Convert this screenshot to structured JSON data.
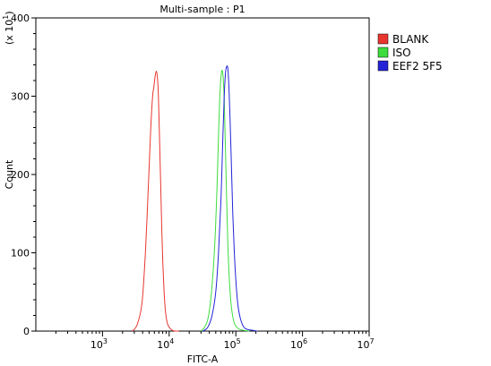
{
  "chart_data": {
    "type": "line",
    "title": "Multi-sample : P1",
    "xlabel": "FITC-A",
    "ylabel": "Count",
    "y_multiplier_label": "(x 10",
    "y_multiplier_exp": "1",
    "x_scale": "log",
    "xlim": [
      100,
      10000000
    ],
    "ylim": [
      0,
      400
    ],
    "grid": false,
    "legend_position": "right",
    "y_ticks": [
      0,
      100,
      200,
      300,
      400
    ],
    "x_ticks": [
      {
        "value": 1000,
        "base": "10",
        "exp": "3"
      },
      {
        "value": 10000,
        "base": "10",
        "exp": "4"
      },
      {
        "value": 100000,
        "base": "10",
        "exp": "5"
      },
      {
        "value": 1000000,
        "base": "10",
        "exp": "6"
      },
      {
        "value": 10000000,
        "base": "10",
        "exp": "7"
      }
    ],
    "series": [
      {
        "name": "BLANK",
        "color": "#e8362f",
        "x": [
          2800,
          3300,
          3900,
          4400,
          4900,
          5300,
          5650,
          5900,
          6150,
          6400,
          6650,
          6900,
          7150,
          7450,
          7750,
          8050,
          8400,
          8800,
          9400,
          10200,
          11200,
          12500,
          14000
        ],
        "y": [
          0,
          8,
          35,
          100,
          190,
          260,
          300,
          312,
          325,
          332,
          325,
          300,
          250,
          190,
          130,
          85,
          50,
          25,
          10,
          4,
          1,
          0,
          0
        ]
      },
      {
        "name": "ISO",
        "color": "#3ddc3d",
        "x": [
          30000,
          34000,
          38000,
          42000,
          46000,
          49500,
          52500,
          55000,
          57500,
          60000,
          62500,
          65000,
          67500,
          70000,
          73000,
          76000,
          80000,
          86000,
          95000,
          110000,
          130000,
          160000
        ],
        "y": [
          0,
          5,
          15,
          40,
          80,
          130,
          190,
          250,
          300,
          325,
          333,
          320,
          285,
          230,
          165,
          110,
          65,
          30,
          10,
          3,
          1,
          0
        ]
      },
      {
        "name": "EEF2 5F5",
        "color": "#2323d8",
        "x": [
          32000,
          38000,
          44000,
          50000,
          55000,
          60000,
          64000,
          67000,
          70000,
          73000,
          76000,
          79000,
          82000,
          86000,
          90000,
          95000,
          101000,
          108000,
          118000,
          132000,
          150000,
          180000,
          210000
        ],
        "y": [
          0,
          5,
          20,
          50,
          100,
          170,
          250,
          300,
          330,
          338,
          335,
          310,
          270,
          210,
          150,
          100,
          60,
          32,
          15,
          5,
          2,
          1,
          0
        ]
      }
    ]
  }
}
